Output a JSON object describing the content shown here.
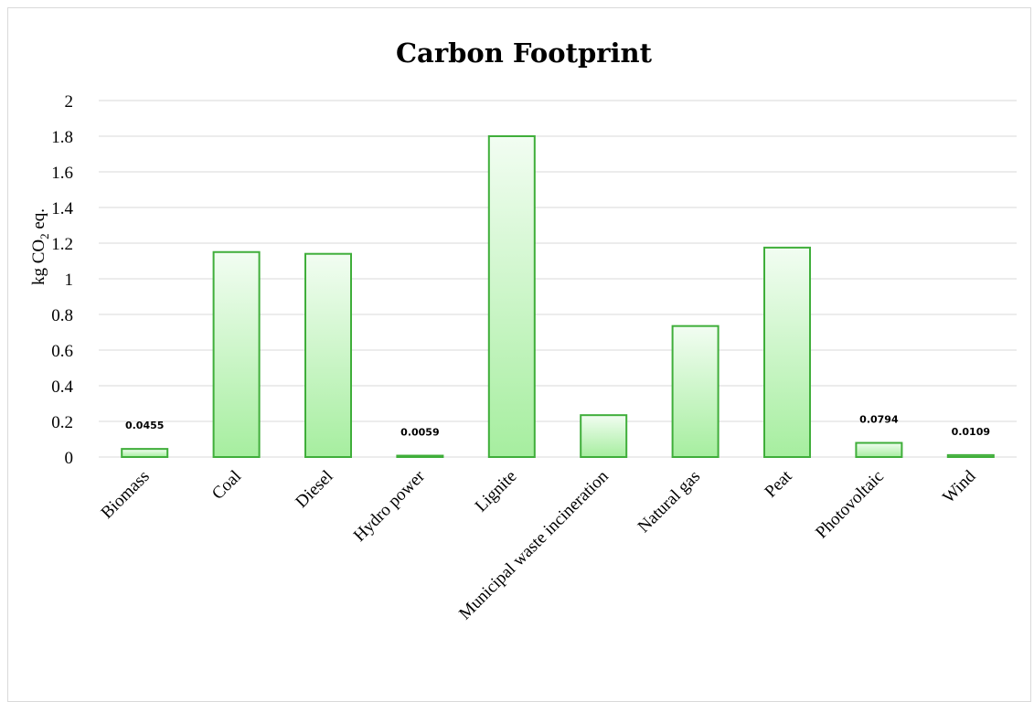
{
  "chart_data": {
    "type": "bar",
    "title": "Carbon Footprint",
    "xlabel": "",
    "ylabel": {
      "prefix": "kg CO",
      "subscript": "2",
      "suffix": " eq."
    },
    "categories": [
      "Biomass",
      "Coal",
      "Diesel",
      "Hydro power",
      "Lignite",
      "Municipal waste incineration",
      "Natural gas",
      "Peat",
      "Photovoltaic",
      "Wind"
    ],
    "values": [
      0.0455,
      1.15,
      1.14,
      0.0059,
      1.8,
      0.235,
      0.735,
      1.175,
      0.0794,
      0.0109
    ],
    "data_labels": [
      "0.0455",
      "",
      "",
      "0.0059",
      "",
      "",
      "",
      "",
      "0.0794",
      "0.0109"
    ],
    "ylim": [
      0,
      2
    ],
    "yticks": [
      0,
      0.2,
      0.4,
      0.6,
      0.8,
      1,
      1.2,
      1.4,
      1.6,
      1.8,
      2
    ],
    "ytick_labels": [
      "0",
      "0.2",
      "0.4",
      "0.6",
      "0.8",
      "1",
      "1.2",
      "1.4",
      "1.6",
      "1.8",
      "2"
    ],
    "grid": true,
    "legend": "none",
    "colors": {
      "bar_fill_top": "#f2fdf2",
      "bar_fill_bottom": "#a6ee9f",
      "bar_stroke": "#3fae3a",
      "gridline": "#d9d9d9"
    }
  }
}
